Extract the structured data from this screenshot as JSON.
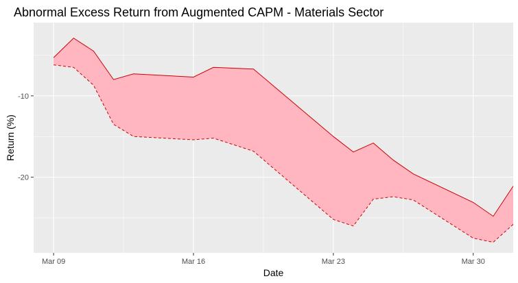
{
  "chart_data": {
    "type": "area",
    "title": "Abnormal Excess Return from Augmented CAPM - Materials Sector",
    "xlabel": "Date",
    "ylabel": "Return (%)",
    "x_ticks": [
      {
        "day": 9,
        "label": "Mar 09"
      },
      {
        "day": 16,
        "label": "Mar 16"
      },
      {
        "day": 23,
        "label": "Mar 23"
      },
      {
        "day": 30,
        "label": "Mar 30"
      }
    ],
    "y_ticks": [
      -10,
      -20
    ],
    "xlim": [
      8.0,
      32.0
    ],
    "ylim": [
      -29.3,
      -1.0
    ],
    "grid": true,
    "x": [
      9,
      10,
      11,
      12,
      13,
      16,
      17,
      19,
      23,
      24,
      25,
      26,
      27,
      30,
      31,
      32
    ],
    "series": [
      {
        "line": "solid",
        "values": [
          -5.3,
          -2.9,
          -4.5,
          -8.0,
          -7.3,
          -7.7,
          -6.5,
          -6.7,
          -15.0,
          -16.9,
          -15.8,
          -17.9,
          -19.6,
          -23.1,
          -24.8,
          -21.1
        ]
      },
      {
        "line": "dashed",
        "values": [
          -6.2,
          -6.5,
          -8.7,
          -13.5,
          -15.0,
          -15.4,
          -15.2,
          -16.8,
          -25.2,
          -26.0,
          -22.7,
          -22.4,
          -22.8,
          -27.5,
          -28.0,
          -25.8
        ]
      }
    ],
    "colors": {
      "panel": "#ebebeb",
      "grid": "#ffffff",
      "ribbon": "#ffb6c1",
      "line": "#cc0000",
      "tick": "#333333"
    }
  }
}
